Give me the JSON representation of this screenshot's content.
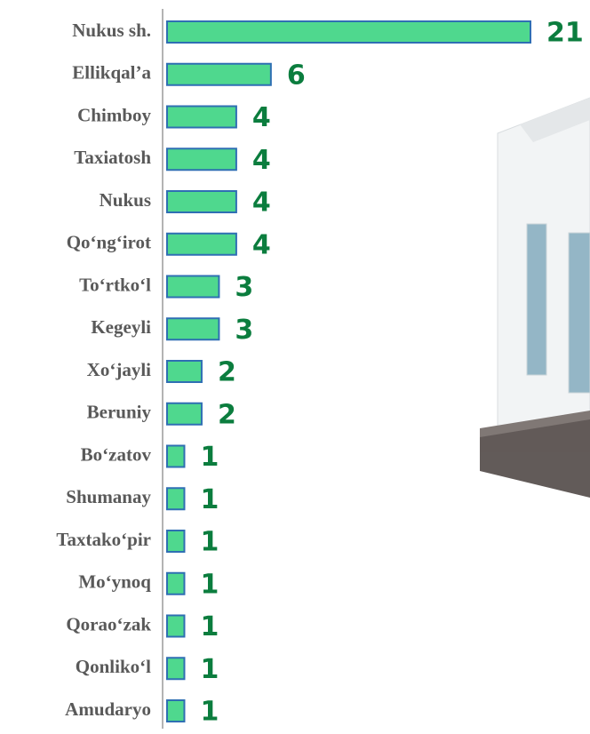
{
  "chart_data": {
    "type": "barh",
    "categories": [
      "Nukus sh.",
      "Ellikqal’a",
      "Chimboy",
      "Taxiatosh",
      "Nukus",
      "Qo‘ng‘irot",
      "To‘rtko‘l",
      "Kegeyli",
      "Xo‘jayli",
      "Beruniy",
      "Bo‘zatov",
      "Shumanay",
      "Taxtako‘pir",
      "Mo‘ynoq",
      "Qorao‘zak",
      "Qonliko‘l",
      "Amudaryo"
    ],
    "values": [
      21,
      6,
      4,
      4,
      4,
      4,
      3,
      3,
      2,
      2,
      1,
      1,
      1,
      1,
      1,
      1,
      1
    ],
    "color": "#4fd88e",
    "edge_color": "#2f6fb3"
  }
}
